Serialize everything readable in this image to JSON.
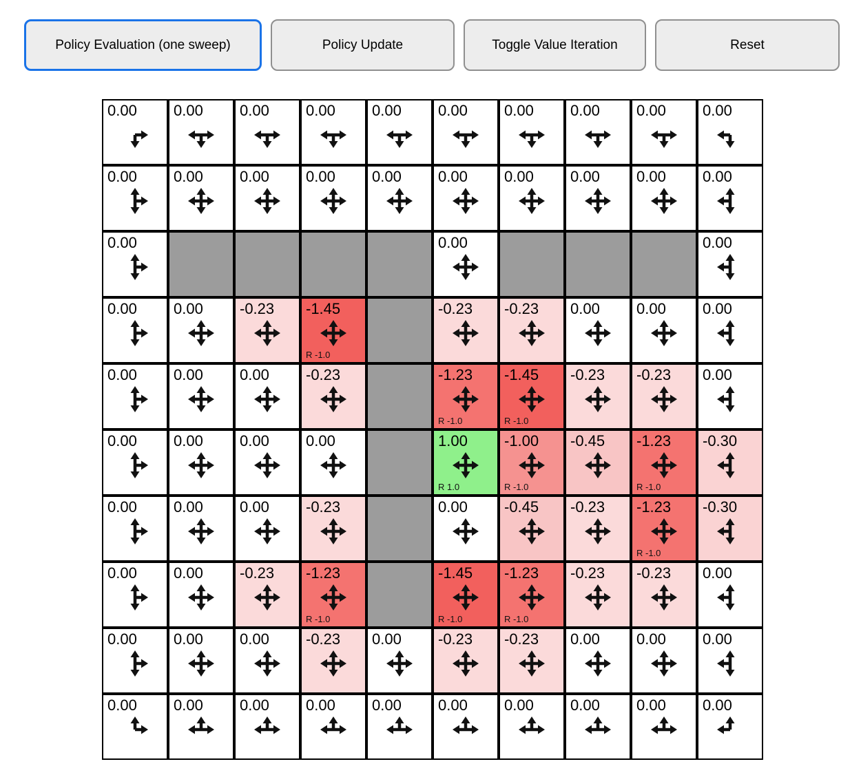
{
  "toolbar": {
    "buttons": [
      {
        "label": "Policy Evaluation (one sweep)",
        "active": true
      },
      {
        "label": "Policy Update",
        "active": false
      },
      {
        "label": "Toggle Value Iteration",
        "active": false
      },
      {
        "label": "Reset",
        "active": false
      }
    ],
    "active_border_color": "#1a73e8"
  },
  "colors": {
    "wall": "#9c9c9c",
    "cell_border": "#000000",
    "positive_reward_bg": "#8ff08b",
    "negative_strong_bg": "#f2605d"
  },
  "grid": {
    "rows": 10,
    "cols": 10,
    "cells": [
      [
        {
          "v": "0.00",
          "bg": "#ffffff",
          "dirs": [
            "d",
            "r"
          ]
        },
        {
          "v": "0.00",
          "bg": "#ffffff",
          "dirs": [
            "d",
            "l",
            "r"
          ]
        },
        {
          "v": "0.00",
          "bg": "#ffffff",
          "dirs": [
            "d",
            "l",
            "r"
          ]
        },
        {
          "v": "0.00",
          "bg": "#ffffff",
          "dirs": [
            "d",
            "l",
            "r"
          ]
        },
        {
          "v": "0.00",
          "bg": "#ffffff",
          "dirs": [
            "d",
            "l",
            "r"
          ]
        },
        {
          "v": "0.00",
          "bg": "#ffffff",
          "dirs": [
            "d",
            "l",
            "r"
          ]
        },
        {
          "v": "0.00",
          "bg": "#ffffff",
          "dirs": [
            "d",
            "l",
            "r"
          ]
        },
        {
          "v": "0.00",
          "bg": "#ffffff",
          "dirs": [
            "d",
            "l",
            "r"
          ]
        },
        {
          "v": "0.00",
          "bg": "#ffffff",
          "dirs": [
            "d",
            "l",
            "r"
          ]
        },
        {
          "v": "0.00",
          "bg": "#ffffff",
          "dirs": [
            "d",
            "l"
          ]
        }
      ],
      [
        {
          "v": "0.00",
          "bg": "#ffffff",
          "dirs": [
            "u",
            "d",
            "r"
          ]
        },
        {
          "v": "0.00",
          "bg": "#ffffff",
          "dirs": [
            "u",
            "d",
            "l",
            "r"
          ]
        },
        {
          "v": "0.00",
          "bg": "#ffffff",
          "dirs": [
            "u",
            "d",
            "l",
            "r"
          ]
        },
        {
          "v": "0.00",
          "bg": "#ffffff",
          "dirs": [
            "u",
            "d",
            "l",
            "r"
          ]
        },
        {
          "v": "0.00",
          "bg": "#ffffff",
          "dirs": [
            "u",
            "d",
            "l",
            "r"
          ]
        },
        {
          "v": "0.00",
          "bg": "#ffffff",
          "dirs": [
            "u",
            "d",
            "l",
            "r"
          ]
        },
        {
          "v": "0.00",
          "bg": "#ffffff",
          "dirs": [
            "u",
            "d",
            "l",
            "r"
          ]
        },
        {
          "v": "0.00",
          "bg": "#ffffff",
          "dirs": [
            "u",
            "d",
            "l",
            "r"
          ]
        },
        {
          "v": "0.00",
          "bg": "#ffffff",
          "dirs": [
            "u",
            "d",
            "l",
            "r"
          ]
        },
        {
          "v": "0.00",
          "bg": "#ffffff",
          "dirs": [
            "u",
            "d",
            "l"
          ]
        }
      ],
      [
        {
          "v": "0.00",
          "bg": "#ffffff",
          "dirs": [
            "u",
            "d",
            "r"
          ]
        },
        {
          "wall": true
        },
        {
          "wall": true
        },
        {
          "wall": true
        },
        {
          "wall": true
        },
        {
          "v": "0.00",
          "bg": "#ffffff",
          "dirs": [
            "u",
            "d",
            "l",
            "r"
          ]
        },
        {
          "wall": true
        },
        {
          "wall": true
        },
        {
          "wall": true
        },
        {
          "v": "0.00",
          "bg": "#ffffff",
          "dirs": [
            "u",
            "d",
            "l"
          ]
        }
      ],
      [
        {
          "v": "0.00",
          "bg": "#ffffff",
          "dirs": [
            "u",
            "d",
            "r"
          ]
        },
        {
          "v": "0.00",
          "bg": "#ffffff",
          "dirs": [
            "u",
            "d",
            "l",
            "r"
          ]
        },
        {
          "v": "-0.23",
          "bg": "#fbdada",
          "dirs": [
            "u",
            "d",
            "l",
            "r"
          ]
        },
        {
          "v": "-1.45",
          "bg": "#f2605d",
          "dirs": [
            "u",
            "d",
            "l",
            "r"
          ],
          "r": "R -1.0"
        },
        {
          "wall": true
        },
        {
          "v": "-0.23",
          "bg": "#fbdada",
          "dirs": [
            "u",
            "d",
            "l",
            "r"
          ]
        },
        {
          "v": "-0.23",
          "bg": "#fbdada",
          "dirs": [
            "u",
            "d",
            "l",
            "r"
          ]
        },
        {
          "v": "0.00",
          "bg": "#ffffff",
          "dirs": [
            "u",
            "d",
            "l",
            "r"
          ]
        },
        {
          "v": "0.00",
          "bg": "#ffffff",
          "dirs": [
            "u",
            "d",
            "l",
            "r"
          ]
        },
        {
          "v": "0.00",
          "bg": "#ffffff",
          "dirs": [
            "u",
            "d",
            "l"
          ]
        }
      ],
      [
        {
          "v": "0.00",
          "bg": "#ffffff",
          "dirs": [
            "u",
            "d",
            "r"
          ]
        },
        {
          "v": "0.00",
          "bg": "#ffffff",
          "dirs": [
            "u",
            "d",
            "l",
            "r"
          ]
        },
        {
          "v": "0.00",
          "bg": "#ffffff",
          "dirs": [
            "u",
            "d",
            "l",
            "r"
          ]
        },
        {
          "v": "-0.23",
          "bg": "#fbdada",
          "dirs": [
            "u",
            "d",
            "l",
            "r"
          ]
        },
        {
          "wall": true
        },
        {
          "v": "-1.23",
          "bg": "#f47370",
          "dirs": [
            "u",
            "d",
            "l",
            "r"
          ],
          "r": "R -1.0"
        },
        {
          "v": "-1.45",
          "bg": "#f2605d",
          "dirs": [
            "u",
            "d",
            "l",
            "r"
          ],
          "r": "R -1.0"
        },
        {
          "v": "-0.23",
          "bg": "#fbdada",
          "dirs": [
            "u",
            "d",
            "l",
            "r"
          ]
        },
        {
          "v": "-0.23",
          "bg": "#fbdada",
          "dirs": [
            "u",
            "d",
            "l",
            "r"
          ]
        },
        {
          "v": "0.00",
          "bg": "#ffffff",
          "dirs": [
            "u",
            "d",
            "l"
          ]
        }
      ],
      [
        {
          "v": "0.00",
          "bg": "#ffffff",
          "dirs": [
            "u",
            "d",
            "r"
          ]
        },
        {
          "v": "0.00",
          "bg": "#ffffff",
          "dirs": [
            "u",
            "d",
            "l",
            "r"
          ]
        },
        {
          "v": "0.00",
          "bg": "#ffffff",
          "dirs": [
            "u",
            "d",
            "l",
            "r"
          ]
        },
        {
          "v": "0.00",
          "bg": "#ffffff",
          "dirs": [
            "u",
            "d",
            "l",
            "r"
          ]
        },
        {
          "wall": true
        },
        {
          "v": "1.00",
          "bg": "#8ff08b",
          "dirs": [
            "u",
            "d",
            "l",
            "r"
          ],
          "r": "R 1.0"
        },
        {
          "v": "-1.00",
          "bg": "#f59290",
          "dirs": [
            "u",
            "d",
            "l",
            "r"
          ],
          "r": "R -1.0"
        },
        {
          "v": "-0.45",
          "bg": "#f8c5c5",
          "dirs": [
            "u",
            "d",
            "l",
            "r"
          ]
        },
        {
          "v": "-1.23",
          "bg": "#f47370",
          "dirs": [
            "u",
            "d",
            "l",
            "r"
          ],
          "r": "R -1.0"
        },
        {
          "v": "-0.30",
          "bg": "#fad3d3",
          "dirs": [
            "u",
            "d",
            "l"
          ]
        }
      ],
      [
        {
          "v": "0.00",
          "bg": "#ffffff",
          "dirs": [
            "u",
            "d",
            "r"
          ]
        },
        {
          "v": "0.00",
          "bg": "#ffffff",
          "dirs": [
            "u",
            "d",
            "l",
            "r"
          ]
        },
        {
          "v": "0.00",
          "bg": "#ffffff",
          "dirs": [
            "u",
            "d",
            "l",
            "r"
          ]
        },
        {
          "v": "-0.23",
          "bg": "#fbdada",
          "dirs": [
            "u",
            "d",
            "l",
            "r"
          ]
        },
        {
          "wall": true
        },
        {
          "v": "0.00",
          "bg": "#ffffff",
          "dirs": [
            "u",
            "d",
            "l",
            "r"
          ]
        },
        {
          "v": "-0.45",
          "bg": "#f8c5c5",
          "dirs": [
            "u",
            "d",
            "l",
            "r"
          ]
        },
        {
          "v": "-0.23",
          "bg": "#fbdada",
          "dirs": [
            "u",
            "d",
            "l",
            "r"
          ]
        },
        {
          "v": "-1.23",
          "bg": "#f47370",
          "dirs": [
            "u",
            "d",
            "l",
            "r"
          ],
          "r": "R -1.0"
        },
        {
          "v": "-0.30",
          "bg": "#fad3d3",
          "dirs": [
            "u",
            "d",
            "l"
          ]
        }
      ],
      [
        {
          "v": "0.00",
          "bg": "#ffffff",
          "dirs": [
            "u",
            "d",
            "r"
          ]
        },
        {
          "v": "0.00",
          "bg": "#ffffff",
          "dirs": [
            "u",
            "d",
            "l",
            "r"
          ]
        },
        {
          "v": "-0.23",
          "bg": "#fbdada",
          "dirs": [
            "u",
            "d",
            "l",
            "r"
          ]
        },
        {
          "v": "-1.23",
          "bg": "#f47370",
          "dirs": [
            "u",
            "d",
            "l",
            "r"
          ],
          "r": "R -1.0"
        },
        {
          "wall": true
        },
        {
          "v": "-1.45",
          "bg": "#f2605d",
          "dirs": [
            "u",
            "d",
            "l",
            "r"
          ],
          "r": "R -1.0"
        },
        {
          "v": "-1.23",
          "bg": "#f47370",
          "dirs": [
            "u",
            "d",
            "l",
            "r"
          ],
          "r": "R -1.0"
        },
        {
          "v": "-0.23",
          "bg": "#fbdada",
          "dirs": [
            "u",
            "d",
            "l",
            "r"
          ]
        },
        {
          "v": "-0.23",
          "bg": "#fbdada",
          "dirs": [
            "u",
            "d",
            "l",
            "r"
          ]
        },
        {
          "v": "0.00",
          "bg": "#ffffff",
          "dirs": [
            "u",
            "d",
            "l"
          ]
        }
      ],
      [
        {
          "v": "0.00",
          "bg": "#ffffff",
          "dirs": [
            "u",
            "d",
            "r"
          ]
        },
        {
          "v": "0.00",
          "bg": "#ffffff",
          "dirs": [
            "u",
            "d",
            "l",
            "r"
          ]
        },
        {
          "v": "0.00",
          "bg": "#ffffff",
          "dirs": [
            "u",
            "d",
            "l",
            "r"
          ]
        },
        {
          "v": "-0.23",
          "bg": "#fbdada",
          "dirs": [
            "u",
            "d",
            "l",
            "r"
          ]
        },
        {
          "v": "0.00",
          "bg": "#ffffff",
          "dirs": [
            "u",
            "d",
            "l",
            "r"
          ]
        },
        {
          "v": "-0.23",
          "bg": "#fbdada",
          "dirs": [
            "u",
            "d",
            "l",
            "r"
          ]
        },
        {
          "v": "-0.23",
          "bg": "#fbdada",
          "dirs": [
            "u",
            "d",
            "l",
            "r"
          ]
        },
        {
          "v": "0.00",
          "bg": "#ffffff",
          "dirs": [
            "u",
            "d",
            "l",
            "r"
          ]
        },
        {
          "v": "0.00",
          "bg": "#ffffff",
          "dirs": [
            "u",
            "d",
            "l",
            "r"
          ]
        },
        {
          "v": "0.00",
          "bg": "#ffffff",
          "dirs": [
            "u",
            "d",
            "l"
          ]
        }
      ],
      [
        {
          "v": "0.00",
          "bg": "#ffffff",
          "dirs": [
            "u",
            "r"
          ]
        },
        {
          "v": "0.00",
          "bg": "#ffffff",
          "dirs": [
            "u",
            "l",
            "r"
          ]
        },
        {
          "v": "0.00",
          "bg": "#ffffff",
          "dirs": [
            "u",
            "l",
            "r"
          ]
        },
        {
          "v": "0.00",
          "bg": "#ffffff",
          "dirs": [
            "u",
            "l",
            "r"
          ]
        },
        {
          "v": "0.00",
          "bg": "#ffffff",
          "dirs": [
            "u",
            "l",
            "r"
          ]
        },
        {
          "v": "0.00",
          "bg": "#ffffff",
          "dirs": [
            "u",
            "l",
            "r"
          ]
        },
        {
          "v": "0.00",
          "bg": "#ffffff",
          "dirs": [
            "u",
            "l",
            "r"
          ]
        },
        {
          "v": "0.00",
          "bg": "#ffffff",
          "dirs": [
            "u",
            "l",
            "r"
          ]
        },
        {
          "v": "0.00",
          "bg": "#ffffff",
          "dirs": [
            "u",
            "l",
            "r"
          ]
        },
        {
          "v": "0.00",
          "bg": "#ffffff",
          "dirs": [
            "u",
            "l"
          ]
        }
      ]
    ]
  }
}
